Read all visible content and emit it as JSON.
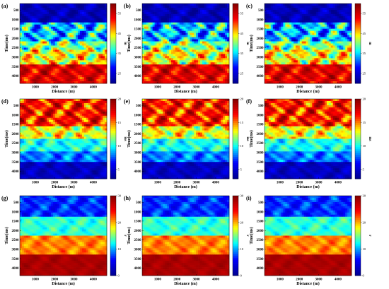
{
  "colormap": [
    "#00008f",
    "#0000ff",
    "#00ffff",
    "#ffff00",
    "#ff0000",
    "#800000"
  ],
  "chart_data": [
    {
      "type": "heatmap",
      "label": "(a)",
      "xlabel": "Distance (m)",
      "ylabel": "Time(ms)",
      "xticks": [
        1000,
        2000,
        3000,
        4000
      ],
      "xlim": [
        200,
        4700
      ],
      "yticks": [
        500,
        1000,
        1500,
        2000,
        2500,
        3000,
        3500,
        4000
      ],
      "ylim": [
        150,
        4400
      ],
      "colorbar": {
        "ticks": [
          25,
          35,
          45,
          55
        ],
        "clim": [
          20,
          60
        ],
        "unit": "m"
      },
      "layers": [
        {
          "from": 150,
          "to": 1150,
          "mean": 23,
          "var": 6
        },
        {
          "from": 1150,
          "to": 2200,
          "mean": 34,
          "var": 14
        },
        {
          "from": 2200,
          "to": 2600,
          "mean": 40,
          "var": 12
        },
        {
          "from": 2600,
          "to": 3350,
          "mean": 44,
          "var": 12
        },
        {
          "from": 3350,
          "to": 4400,
          "mean": 54,
          "var": 8
        }
      ]
    },
    {
      "type": "heatmap",
      "label": "(b)",
      "xlabel": "Distance (m)",
      "ylabel": "Time(ms)",
      "xticks": [
        1000,
        2000,
        3000,
        4000
      ],
      "xlim": [
        200,
        4700
      ],
      "yticks": [
        500,
        1000,
        1500,
        2000,
        2500,
        3000,
        3500,
        4000
      ],
      "ylim": [
        150,
        4400
      ],
      "colorbar": {
        "ticks": [
          25,
          35,
          45,
          55
        ],
        "clim": [
          20,
          60
        ],
        "unit": "m"
      },
      "layers": [
        {
          "from": 150,
          "to": 1150,
          "mean": 23,
          "var": 6
        },
        {
          "from": 1150,
          "to": 2200,
          "mean": 34,
          "var": 14
        },
        {
          "from": 2200,
          "to": 2600,
          "mean": 40,
          "var": 12
        },
        {
          "from": 2600,
          "to": 3350,
          "mean": 44,
          "var": 12
        },
        {
          "from": 3350,
          "to": 4400,
          "mean": 54,
          "var": 8
        }
      ]
    },
    {
      "type": "heatmap",
      "label": "(c)",
      "xlabel": "Distance (m)",
      "ylabel": "Time(ms)",
      "xticks": [
        1000,
        2000,
        3000,
        4000
      ],
      "xlim": [
        200,
        4700
      ],
      "yticks": [
        500,
        1000,
        1500,
        2000,
        2500,
        3000,
        3500,
        4000
      ],
      "ylim": [
        150,
        4400
      ],
      "colorbar": {
        "ticks": [
          25,
          35,
          45,
          55
        ],
        "clim": [
          20,
          60
        ],
        "unit": "m"
      },
      "layers": [
        {
          "from": 150,
          "to": 1150,
          "mean": 23,
          "var": 6
        },
        {
          "from": 1150,
          "to": 2200,
          "mean": 34,
          "var": 14
        },
        {
          "from": 2200,
          "to": 2600,
          "mean": 40,
          "var": 12
        },
        {
          "from": 2600,
          "to": 3350,
          "mean": 44,
          "var": 12
        },
        {
          "from": 3350,
          "to": 4400,
          "mean": 54,
          "var": 8
        }
      ]
    },
    {
      "type": "heatmap",
      "label": "(d)",
      "xlabel": "Distance (m)",
      "ylabel": "Time(ms)",
      "xticks": [
        1000,
        2000,
        3000,
        4000
      ],
      "xlim": [
        200,
        4700
      ],
      "yticks": [
        500,
        1000,
        1500,
        2000,
        2500,
        3000,
        3500,
        4000
      ],
      "ylim": [
        150,
        4400
      ],
      "colorbar": {
        "ticks": [
          5,
          10,
          15,
          20
        ],
        "clim": [
          3,
          20
        ],
        "unit": "ms"
      },
      "layers": [
        {
          "from": 150,
          "to": 1600,
          "mean": 16.5,
          "var": 5
        },
        {
          "from": 1600,
          "to": 2300,
          "mean": 13,
          "var": 4
        },
        {
          "from": 2300,
          "to": 3000,
          "mean": 10,
          "var": 2.5
        },
        {
          "from": 3000,
          "to": 3500,
          "mean": 8,
          "var": 2.5
        },
        {
          "from": 3500,
          "to": 4400,
          "mean": 4.5,
          "var": 2
        }
      ]
    },
    {
      "type": "heatmap",
      "label": "(e)",
      "xlabel": "Distance (m)",
      "ylabel": "Time(ms)",
      "xticks": [
        1000,
        2000,
        3000,
        4000
      ],
      "xlim": [
        200,
        4700
      ],
      "yticks": [
        500,
        1000,
        1500,
        2000,
        2500,
        3000,
        3500,
        4000
      ],
      "ylim": [
        150,
        4400
      ],
      "colorbar": {
        "ticks": [
          5,
          10,
          15,
          20
        ],
        "clim": [
          3,
          20
        ],
        "unit": "ms"
      },
      "layers": [
        {
          "from": 150,
          "to": 1600,
          "mean": 16.5,
          "var": 5
        },
        {
          "from": 1600,
          "to": 2300,
          "mean": 13,
          "var": 4
        },
        {
          "from": 2300,
          "to": 3000,
          "mean": 10,
          "var": 2.5
        },
        {
          "from": 3000,
          "to": 3500,
          "mean": 8,
          "var": 2.5
        },
        {
          "from": 3500,
          "to": 4400,
          "mean": 4.5,
          "var": 2
        }
      ]
    },
    {
      "type": "heatmap",
      "label": "(f)",
      "xlabel": "Distance (m)",
      "ylabel": "Time(ms)",
      "xticks": [
        1000,
        2000,
        3000,
        4000
      ],
      "xlim": [
        200,
        4700
      ],
      "yticks": [
        500,
        1000,
        1500,
        2000,
        2500,
        3000,
        3500,
        4000
      ],
      "ylim": [
        150,
        4400
      ],
      "colorbar": {
        "ticks": [
          5,
          10,
          15,
          20
        ],
        "clim": [
          3,
          20
        ],
        "unit": "ms"
      },
      "layers": [
        {
          "from": 150,
          "to": 1600,
          "mean": 16.5,
          "var": 5
        },
        {
          "from": 1600,
          "to": 2300,
          "mean": 13,
          "var": 4
        },
        {
          "from": 2300,
          "to": 3000,
          "mean": 10,
          "var": 2.5
        },
        {
          "from": 3000,
          "to": 3500,
          "mean": 8,
          "var": 2.5
        },
        {
          "from": 3500,
          "to": 4400,
          "mean": 4.5,
          "var": 2
        }
      ]
    },
    {
      "type": "heatmap",
      "label": "(g)",
      "xlabel": "Distance (m)",
      "ylabel": "Time(ms)",
      "xticks": [
        1000,
        2000,
        3000,
        4000
      ],
      "xlim": [
        200,
        4700
      ],
      "yticks": [
        500,
        1000,
        1500,
        2000,
        2500,
        3000,
        3500,
        4000
      ],
      "ylim": [
        150,
        4400
      ],
      "colorbar": {
        "ticks": [
          0,
          10,
          20,
          30
        ],
        "clim": [
          0,
          30
        ],
        "unit": "r"
      },
      "layers": [
        {
          "from": 150,
          "to": 1300,
          "mean": 7,
          "var": 4
        },
        {
          "from": 1300,
          "to": 2250,
          "mean": 13,
          "var": 3
        },
        {
          "from": 2250,
          "to": 3300,
          "mean": 21,
          "var": 3
        },
        {
          "from": 3300,
          "to": 4400,
          "mean": 28,
          "var": 1.5
        }
      ]
    },
    {
      "type": "heatmap",
      "label": "(h)",
      "xlabel": "Distance (m)",
      "ylabel": "Time(ms)",
      "xticks": [
        1000,
        2000,
        3000,
        4000
      ],
      "xlim": [
        200,
        4700
      ],
      "yticks": [
        500,
        1000,
        1500,
        2000,
        2500,
        3000,
        3500,
        4000
      ],
      "ylim": [
        150,
        4400
      ],
      "colorbar": {
        "ticks": [
          0,
          10,
          20,
          30
        ],
        "clim": [
          0,
          30
        ],
        "unit": "r"
      },
      "layers": [
        {
          "from": 150,
          "to": 1300,
          "mean": 7,
          "var": 4
        },
        {
          "from": 1300,
          "to": 2250,
          "mean": 13,
          "var": 3
        },
        {
          "from": 2250,
          "to": 3300,
          "mean": 21,
          "var": 3
        },
        {
          "from": 3300,
          "to": 4400,
          "mean": 28,
          "var": 1.5
        }
      ]
    },
    {
      "type": "heatmap",
      "label": "(i)",
      "xlabel": "Distance (m)",
      "ylabel": "Time(ms)",
      "xticks": [
        1000,
        2000,
        3000,
        4000
      ],
      "xlim": [
        200,
        4700
      ],
      "yticks": [
        500,
        1000,
        1500,
        2000,
        2500,
        3000,
        3500,
        4000
      ],
      "ylim": [
        150,
        4400
      ],
      "colorbar": {
        "ticks": [
          0,
          10,
          20,
          30
        ],
        "clim": [
          0,
          30
        ],
        "unit": "r"
      },
      "layers": [
        {
          "from": 150,
          "to": 1300,
          "mean": 7,
          "var": 4
        },
        {
          "from": 1300,
          "to": 2250,
          "mean": 13,
          "var": 3
        },
        {
          "from": 2250,
          "to": 3300,
          "mean": 21,
          "var": 3
        },
        {
          "from": 3300,
          "to": 4400,
          "mean": 28,
          "var": 1.5
        }
      ]
    }
  ]
}
